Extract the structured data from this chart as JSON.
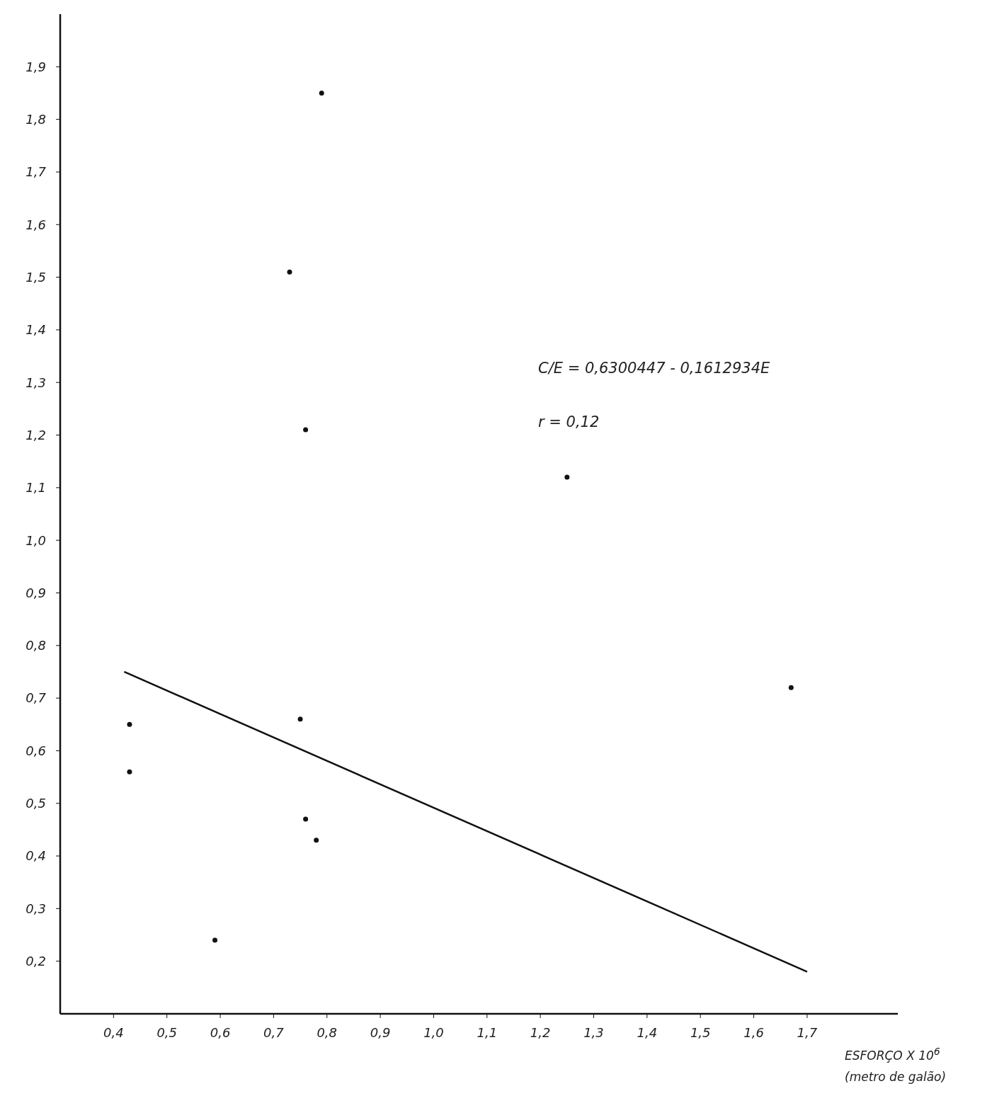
{
  "chart_data": {
    "type": "scatter",
    "xlabel": "ESFORÇO X 10$^{6}$ (metro de galão)",
    "annotations": [
      "C/E = 0,6300447 - 0,1612934E",
      "r = 0,12"
    ],
    "xlim": [
      0.3,
      1.87
    ],
    "ylim": [
      0.1,
      2.0
    ],
    "xticks": [
      {
        "value": 0.4,
        "label": "0,4"
      },
      {
        "value": 0.5,
        "label": "0,5"
      },
      {
        "value": 0.6,
        "label": "0,6"
      },
      {
        "value": 0.7,
        "label": "0,7"
      },
      {
        "value": 0.8,
        "label": "0,8"
      },
      {
        "value": 0.9,
        "label": "0,9"
      },
      {
        "value": 1.0,
        "label": "1,0"
      },
      {
        "value": 1.1,
        "label": "1,1"
      },
      {
        "value": 1.2,
        "label": "1,2"
      },
      {
        "value": 1.3,
        "label": "1,3"
      },
      {
        "value": 1.4,
        "label": "1,4"
      },
      {
        "value": 1.5,
        "label": "1,5"
      },
      {
        "value": 1.6,
        "label": "1,6"
      },
      {
        "value": 1.7,
        "label": "1,7"
      }
    ],
    "yticks": [
      {
        "value": 0.2,
        "label": "0,2"
      },
      {
        "value": 0.3,
        "label": "0,3"
      },
      {
        "value": 0.4,
        "label": "0,4"
      },
      {
        "value": 0.5,
        "label": "0,5"
      },
      {
        "value": 0.6,
        "label": "0,6"
      },
      {
        "value": 0.7,
        "label": "0,7"
      },
      {
        "value": 0.8,
        "label": "0,8"
      },
      {
        "value": 0.9,
        "label": "0,9"
      },
      {
        "value": 1.0,
        "label": "1,0"
      },
      {
        "value": 1.1,
        "label": "1,1"
      },
      {
        "value": 1.2,
        "label": "1,2"
      },
      {
        "value": 1.3,
        "label": "1,3"
      },
      {
        "value": 1.4,
        "label": "1,4"
      },
      {
        "value": 1.5,
        "label": "1,5"
      },
      {
        "value": 1.6,
        "label": "1,6"
      },
      {
        "value": 1.7,
        "label": "1,7"
      },
      {
        "value": 1.8,
        "label": "1,8"
      },
      {
        "value": 1.9,
        "label": "1,9"
      }
    ],
    "grid": false,
    "legend": false,
    "series": [
      {
        "marker": "circle",
        "color": "#111111",
        "x": [
          0.79,
          0.73,
          0.76,
          1.25,
          0.43,
          0.43,
          0.75,
          0.76,
          0.78,
          0.59,
          1.67
        ],
        "values": [
          1.85,
          1.51,
          1.21,
          1.12,
          0.65,
          0.56,
          0.66,
          0.47,
          0.43,
          0.24,
          0.72
        ]
      },
      {
        "type": "line",
        "marker": "none",
        "color": "#111111",
        "x": [
          0.42,
          1.7
        ],
        "values": [
          0.75,
          0.18
        ]
      }
    ]
  }
}
